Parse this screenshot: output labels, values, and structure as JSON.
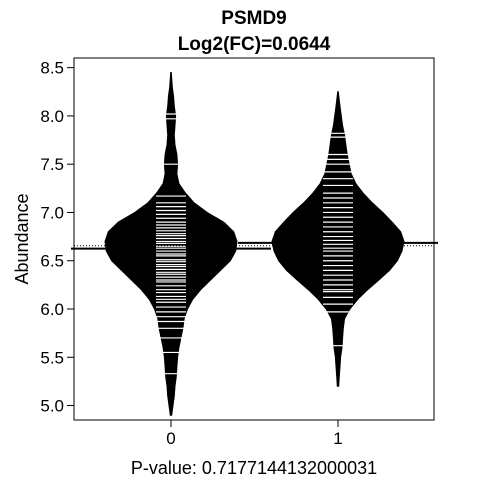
{
  "chart_data": {
    "type": "beanplot",
    "title_line1": "PSMD9",
    "title_line2": "Log2(FC)=0.0644",
    "xlabel": "P-value: 0.7177144132000031",
    "ylabel": "Abundance",
    "categories": [
      "0",
      "1"
    ],
    "ylim": [
      4.85,
      8.6
    ],
    "yticks": [
      5.0,
      5.5,
      6.0,
      6.5,
      7.0,
      7.5,
      8.0,
      8.5
    ],
    "ytick_labels": [
      "5.0",
      "5.5",
      "6.0",
      "6.5",
      "7.0",
      "7.5",
      "8.0",
      "8.5"
    ],
    "overall_mean": 6.655,
    "groups": [
      {
        "category": "0",
        "mean": 6.625,
        "y_min": 4.9,
        "y_max": 8.45,
        "density": [
          [
            4.9,
            0.01
          ],
          [
            5.0,
            0.03
          ],
          [
            5.1,
            0.05
          ],
          [
            5.2,
            0.06
          ],
          [
            5.3,
            0.08
          ],
          [
            5.4,
            0.09
          ],
          [
            5.5,
            0.1
          ],
          [
            5.6,
            0.12
          ],
          [
            5.7,
            0.15
          ],
          [
            5.8,
            0.18
          ],
          [
            5.9,
            0.2
          ],
          [
            6.0,
            0.25
          ],
          [
            6.1,
            0.33
          ],
          [
            6.2,
            0.45
          ],
          [
            6.3,
            0.6
          ],
          [
            6.4,
            0.75
          ],
          [
            6.5,
            0.9
          ],
          [
            6.6,
            0.98
          ],
          [
            6.7,
            1.0
          ],
          [
            6.8,
            0.95
          ],
          [
            6.9,
            0.8
          ],
          [
            7.0,
            0.55
          ],
          [
            7.1,
            0.35
          ],
          [
            7.2,
            0.22
          ],
          [
            7.3,
            0.12
          ],
          [
            7.4,
            0.09
          ],
          [
            7.5,
            0.1
          ],
          [
            7.6,
            0.09
          ],
          [
            7.7,
            0.06
          ],
          [
            7.8,
            0.05
          ],
          [
            7.9,
            0.06
          ],
          [
            8.0,
            0.07
          ],
          [
            8.1,
            0.05
          ],
          [
            8.2,
            0.04
          ],
          [
            8.3,
            0.02
          ],
          [
            8.45,
            0.005
          ]
        ],
        "observations": [
          5.33,
          5.55,
          5.7,
          5.8,
          5.87,
          5.92,
          5.97,
          6.02,
          6.07,
          6.1,
          6.13,
          6.17,
          6.2,
          6.24,
          6.28,
          6.3,
          6.33,
          6.36,
          6.38,
          6.41,
          6.44,
          6.46,
          6.49,
          6.51,
          6.55,
          6.57,
          6.6,
          6.63,
          6.65,
          6.68,
          6.7,
          6.73,
          6.76,
          6.78,
          6.81,
          6.84,
          6.87,
          6.9,
          6.94,
          6.98,
          7.02,
          7.06,
          7.1,
          7.17,
          7.5,
          7.97,
          8.02
        ]
      },
      {
        "category": "1",
        "mean": 6.685,
        "y_min": 5.2,
        "y_max": 8.25,
        "density": [
          [
            5.2,
            0.01
          ],
          [
            5.3,
            0.02
          ],
          [
            5.4,
            0.03
          ],
          [
            5.5,
            0.04
          ],
          [
            5.6,
            0.06
          ],
          [
            5.7,
            0.07
          ],
          [
            5.8,
            0.08
          ],
          [
            5.9,
            0.1
          ],
          [
            6.0,
            0.18
          ],
          [
            6.1,
            0.3
          ],
          [
            6.2,
            0.45
          ],
          [
            6.3,
            0.62
          ],
          [
            6.4,
            0.78
          ],
          [
            6.5,
            0.9
          ],
          [
            6.6,
            0.97
          ],
          [
            6.7,
            1.0
          ],
          [
            6.8,
            0.95
          ],
          [
            6.9,
            0.82
          ],
          [
            7.0,
            0.68
          ],
          [
            7.1,
            0.52
          ],
          [
            7.2,
            0.38
          ],
          [
            7.3,
            0.27
          ],
          [
            7.4,
            0.2
          ],
          [
            7.5,
            0.17
          ],
          [
            7.6,
            0.14
          ],
          [
            7.7,
            0.12
          ],
          [
            7.8,
            0.1
          ],
          [
            7.9,
            0.07
          ],
          [
            8.0,
            0.05
          ],
          [
            8.1,
            0.03
          ],
          [
            8.25,
            0.005
          ]
        ],
        "observations": [
          5.62,
          5.97,
          6.05,
          6.12,
          6.18,
          6.2,
          6.25,
          6.3,
          6.35,
          6.4,
          6.45,
          6.5,
          6.55,
          6.6,
          6.63,
          6.67,
          6.71,
          6.75,
          6.8,
          6.85,
          6.9,
          6.95,
          7.0,
          7.05,
          7.1,
          7.15,
          7.2,
          7.28,
          7.35,
          7.42,
          7.5,
          7.55,
          7.6,
          7.78,
          7.82
        ]
      }
    ]
  }
}
